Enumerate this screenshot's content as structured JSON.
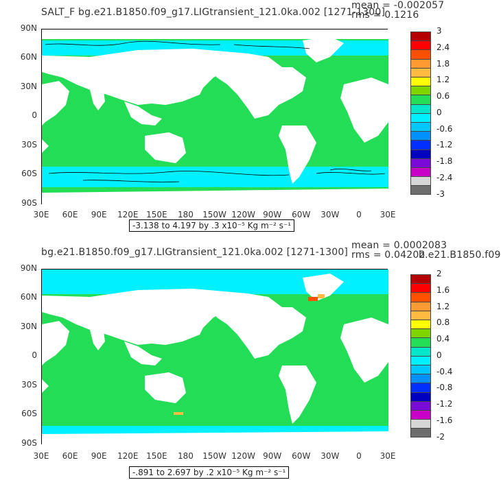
{
  "panels": [
    {
      "title": "SALT_F  bg.e21.B1850.f09_g17.LIGtransient_121.0ka.002  [1271-1300]",
      "mean": "mean = -0.002057",
      "rms": "rms = 0.1216",
      "contour_info": "-3.138 to 4.197 by .3 x10⁻⁵ Kg m⁻² s⁻¹",
      "colorbar_labels": [
        "3",
        "2.4",
        "1.8",
        "1.2",
        "0.6",
        "0",
        "-0.6",
        "-1.2",
        "-1.8",
        "-2.4",
        "-3"
      ],
      "colorbar_colors": [
        "#b40000",
        "#ff0000",
        "#ff5000",
        "#ff9a32",
        "#ffbb40",
        "#ffff00",
        "#7ed500",
        "#22dd55",
        "#00e6c8",
        "#00f0ff",
        "#00c8ff",
        "#0090ff",
        "#0030ff",
        "#0000c0",
        "#7a0ad8",
        "#c800c8",
        "#d6d6d6",
        "#6e6e6e"
      ],
      "ocean_color": "#22dd55",
      "band_color": "#00f0ff"
    },
    {
      "title": "bg.e21.B1850.f09_g17.LIGtransient_121.0ka.002  [1271-1300]",
      "mean": "mean = 0.0002083",
      "rms": "rms = 0.04202",
      "overlap_text": "b.e21.B1850.f09",
      "contour_info": "-.891 to 2.697 by .2 x10⁻⁵ Kg m⁻² s⁻¹",
      "colorbar_labels": [
        "2",
        "1.6",
        "1.2",
        "0.8",
        "0.4",
        "0",
        "-0.4",
        "-0.8",
        "-1.2",
        "-1.6",
        "-2"
      ],
      "colorbar_colors": [
        "#b40000",
        "#ff0000",
        "#ff5000",
        "#ff9a32",
        "#ffbb40",
        "#ffff00",
        "#7ed500",
        "#22dd55",
        "#00e6c8",
        "#00f0ff",
        "#00c8ff",
        "#0090ff",
        "#0030ff",
        "#0000c0",
        "#7a0ad8",
        "#c800c8",
        "#d6d6d6",
        "#6e6e6e"
      ],
      "ocean_color": "#22dd55",
      "band_color": "#00f0ff"
    }
  ],
  "axes": {
    "y_ticks": [
      "90N",
      "60N",
      "30N",
      "0",
      "30S",
      "60S",
      "90S"
    ],
    "x_ticks": [
      "30E",
      "60E",
      "90E",
      "120E",
      "150E",
      "180",
      "150W",
      "120W",
      "90W",
      "60W",
      "30W",
      "0",
      "30E"
    ]
  },
  "chart_data": [
    {
      "type": "heatmap",
      "title": "SALT_F  bg.e21.B1850.f09_g17.LIGtransient_121.0ka.002  [1271-1300]",
      "units": "x10⁻⁵ Kg m⁻² s⁻¹",
      "x_range": [
        "30E",
        "30E"
      ],
      "y_range": [
        "90S",
        "90N"
      ],
      "min": -3.138,
      "max": 4.197,
      "interval": 0.3,
      "mean": -0.002057,
      "rms": 0.1216,
      "colorbar_range": [
        -3,
        3
      ]
    },
    {
      "type": "heatmap",
      "title": "bg.e21.B1850.f09_g17.LIGtransient_121.0ka.002  [1271-1300]",
      "units": "x10⁻⁵ Kg m⁻² s⁻¹",
      "x_range": [
        "30E",
        "30E"
      ],
      "y_range": [
        "90S",
        "90N"
      ],
      "min": -0.891,
      "max": 2.697,
      "interval": 0.2,
      "mean": 0.0002083,
      "rms": 0.04202,
      "colorbar_range": [
        -2,
        2
      ]
    }
  ]
}
